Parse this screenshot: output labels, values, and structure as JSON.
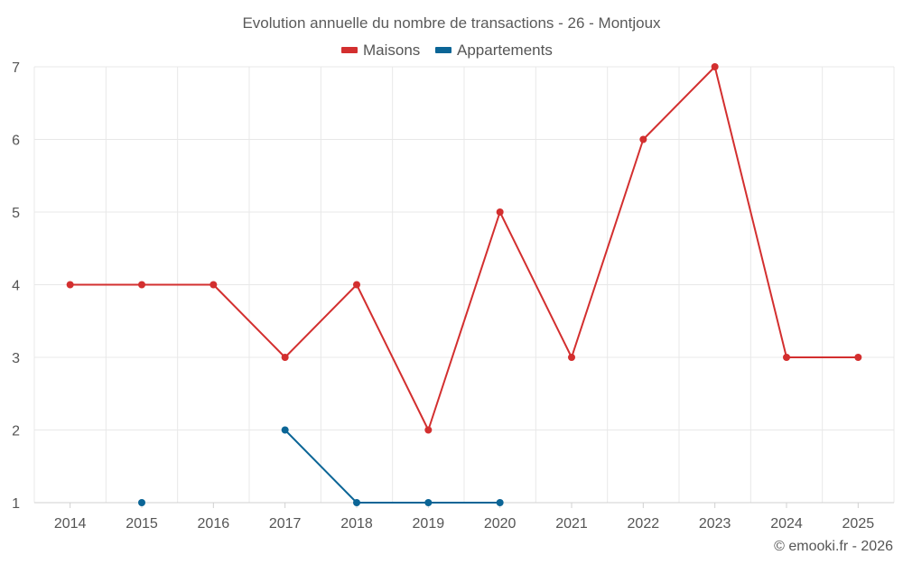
{
  "chart_data": {
    "type": "line",
    "title": "Evolution annuelle du nombre de transactions - 26 - Montjoux",
    "x": [
      "2014",
      "2015",
      "2016",
      "2017",
      "2018",
      "2019",
      "2020",
      "2021",
      "2022",
      "2023",
      "2024",
      "2025"
    ],
    "series": [
      {
        "name": "Maisons",
        "color": "#d32f2f",
        "values": [
          4,
          4,
          4,
          3,
          4,
          2,
          5,
          3,
          6,
          7,
          3,
          3
        ]
      },
      {
        "name": "Appartements",
        "color": "#0b6596",
        "values": [
          null,
          1,
          null,
          2,
          1,
          1,
          1,
          null,
          null,
          null,
          null,
          null
        ]
      }
    ],
    "yticks": [
      "1",
      "2",
      "3",
      "4",
      "5",
      "6",
      "7"
    ],
    "ylim": [
      1,
      7
    ],
    "grid": true,
    "legend_position": "top-center"
  },
  "footer": {
    "credit": "© emooki.fr - 2026"
  }
}
